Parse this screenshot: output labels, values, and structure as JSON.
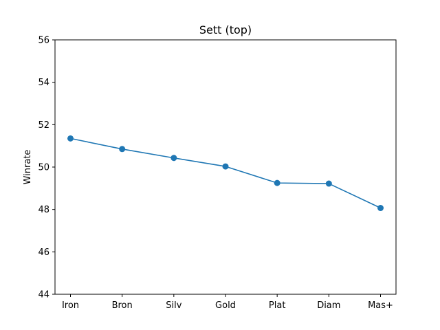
{
  "chart_data": {
    "type": "line",
    "title": "Sett (top)",
    "xlabel": "",
    "ylabel": "Winrate",
    "categories": [
      "Iron",
      "Bron",
      "Silv",
      "Gold",
      "Plat",
      "Diam",
      "Mas+"
    ],
    "series": [
      {
        "values": [
          51.35,
          50.85,
          50.43,
          50.03,
          49.25,
          49.22,
          48.07
        ],
        "color": "#1f77b4",
        "marker": "circle"
      }
    ],
    "ylim": [
      44,
      56
    ],
    "yticks": [
      44,
      46,
      48,
      50,
      52,
      54,
      56
    ],
    "grid": false,
    "legend": "none"
  }
}
